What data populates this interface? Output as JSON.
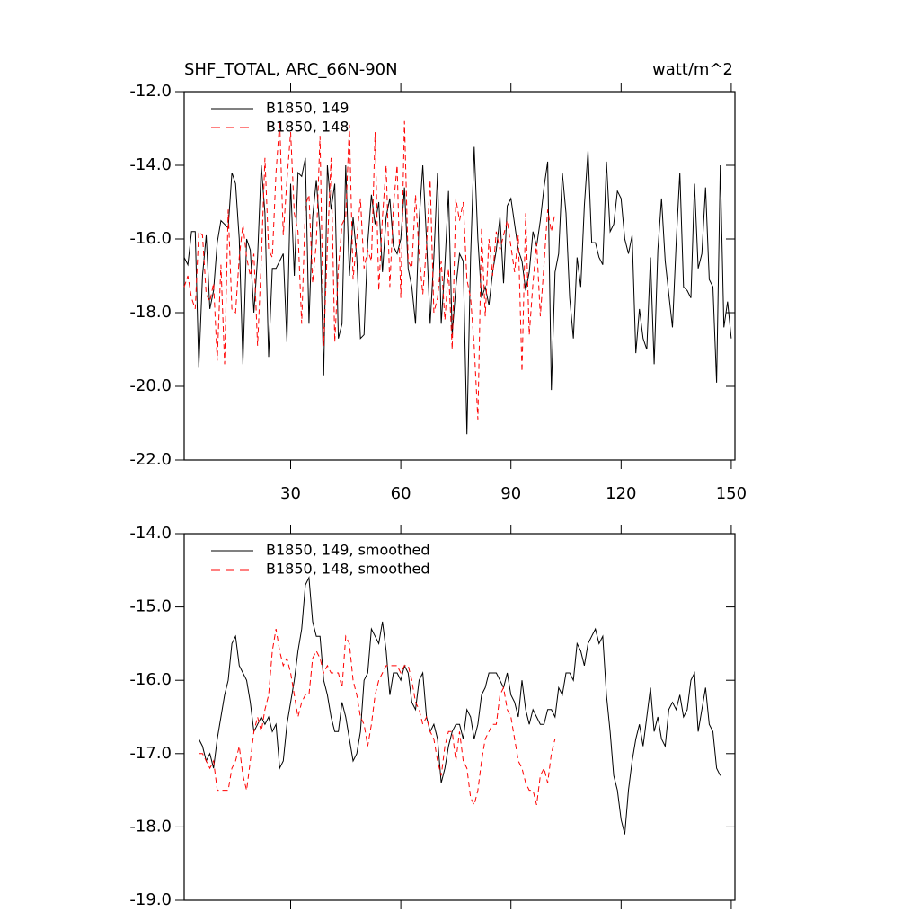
{
  "chart_data": [
    {
      "type": "line",
      "title": "SHF_TOTAL, ARC_66N-90N",
      "right_title": "watt/m^2",
      "xlim": [
        1,
        151
      ],
      "xticks": [
        30,
        60,
        90,
        120,
        150
      ],
      "xtick_labels": true,
      "ylim": [
        -22,
        -12
      ],
      "yticks": [
        {
          "value": -22,
          "label": "-22.0"
        },
        {
          "value": -20,
          "label": "-20.0"
        },
        {
          "value": -18,
          "label": "-18.0"
        },
        {
          "value": -16,
          "label": "-16.0"
        },
        {
          "value": -14,
          "label": "-14.0"
        },
        {
          "value": -12,
          "label": "-12.0"
        }
      ],
      "series": [
        {
          "name": "B1850, 149",
          "color": "#000000",
          "dashed": false,
          "x": [
            1,
            2,
            3,
            4,
            5,
            6,
            7,
            8,
            9,
            10,
            11,
            12,
            13,
            14,
            15,
            16,
            17,
            18,
            19,
            20,
            21,
            22,
            23,
            24,
            25,
            26,
            27,
            28,
            29,
            30,
            31,
            32,
            33,
            34,
            35,
            36,
            37,
            38,
            39,
            40,
            41,
            42,
            43,
            44,
            45,
            46,
            47,
            48,
            49,
            50,
            51,
            52,
            53,
            54,
            55,
            56,
            57,
            58,
            59,
            60,
            61,
            62,
            63,
            64,
            65,
            66,
            67,
            68,
            69,
            70,
            71,
            72,
            73,
            74,
            75,
            76,
            77,
            78,
            79,
            80,
            81,
            82,
            83,
            84,
            85,
            86,
            87,
            88,
            89,
            90,
            91,
            92,
            93,
            94,
            95,
            96,
            97,
            98,
            99,
            100,
            101,
            102,
            103,
            104,
            105,
            106,
            107,
            108,
            109,
            110,
            111,
            112,
            113,
            114,
            115,
            116,
            117,
            118,
            119,
            120,
            121,
            122,
            123,
            124,
            125,
            126,
            127,
            128,
            129,
            130,
            131,
            132,
            133,
            134,
            135,
            136,
            137,
            138,
            139,
            140,
            141,
            142,
            143,
            144,
            145,
            146,
            147,
            148,
            149,
            150
          ],
          "values": [
            -16.5,
            -16.7,
            -15.8,
            -15.8,
            -19.5,
            -17.0,
            -15.9,
            -17.9,
            -17.4,
            -16.1,
            -15.5,
            -15.6,
            -15.7,
            -14.2,
            -14.5,
            -16.0,
            -19.4,
            -16.0,
            -16.3,
            -18.0,
            -16.5,
            -14.0,
            -15.3,
            -19.2,
            -16.8,
            -16.8,
            -16.6,
            -16.4,
            -18.8,
            -14.5,
            -17.0,
            -14.2,
            -14.3,
            -13.8,
            -18.3,
            -15.4,
            -14.4,
            -15.8,
            -19.7,
            -14.0,
            -15.2,
            -14.5,
            -18.7,
            -18.3,
            -14.0,
            -17.0,
            -15.4,
            -16.5,
            -18.7,
            -18.6,
            -16.1,
            -14.8,
            -15.6,
            -15.0,
            -16.9,
            -15.4,
            -14.9,
            -16.2,
            -16.4,
            -16.0,
            -14.6,
            -16.8,
            -17.3,
            -18.3,
            -15.5,
            -14.0,
            -16.0,
            -18.3,
            -16.5,
            -14.2,
            -18.3,
            -16.7,
            -14.7,
            -18.6,
            -17.3,
            -16.4,
            -16.6,
            -21.3,
            -16.5,
            -13.5,
            -16.0,
            -17.6,
            -17.3,
            -17.8,
            -16.9,
            -16.3,
            -15.4,
            -17.2,
            -15.1,
            -14.9,
            -15.6,
            -16.3,
            -16.6,
            -17.4,
            -16.9,
            -15.8,
            -16.2,
            -15.5,
            -14.6,
            -13.9,
            -20.1,
            -16.9,
            -16.4,
            -14.2,
            -15.3,
            -17.6,
            -18.7,
            -16.5,
            -17.3,
            -15.1,
            -13.6,
            -16.1,
            -16.1,
            -16.5,
            -16.7,
            -13.9,
            -15.8,
            -15.6,
            -14.7,
            -14.9,
            -16.0,
            -16.4,
            -15.9,
            -19.1,
            -17.9,
            -18.7,
            -19.0,
            -16.5,
            -19.4,
            -16.3,
            -14.9,
            -16.6,
            -17.5,
            -18.4,
            -16.1,
            -14.2,
            -17.3,
            -17.4,
            -17.6,
            -14.5,
            -16.8,
            -16.4,
            -14.6,
            -17.1,
            -17.3,
            -19.9,
            -14.0,
            -18.4,
            -17.7,
            -18.7
          ]
        },
        {
          "name": "B1850, 148",
          "color": "#ff0000",
          "dashed": true,
          "x": [
            1,
            2,
            3,
            4,
            5,
            6,
            7,
            8,
            9,
            10,
            11,
            12,
            13,
            14,
            15,
            16,
            17,
            18,
            19,
            20,
            21,
            22,
            23,
            24,
            25,
            26,
            27,
            28,
            29,
            30,
            31,
            32,
            33,
            34,
            35,
            36,
            37,
            38,
            39,
            40,
            41,
            42,
            43,
            44,
            45,
            46,
            47,
            48,
            49,
            50,
            51,
            52,
            53,
            54,
            55,
            56,
            57,
            58,
            59,
            60,
            61,
            62,
            63,
            64,
            65,
            66,
            67,
            68,
            69,
            70,
            71,
            72,
            73,
            74,
            75,
            76,
            77,
            78,
            79,
            80,
            81,
            82,
            83,
            84,
            85,
            86,
            87,
            88,
            89,
            90,
            91,
            92,
            93,
            94,
            95,
            96,
            97,
            98,
            99,
            100,
            101,
            102
          ],
          "values": [
            -17.3,
            -17.0,
            -17.6,
            -17.9,
            -15.8,
            -15.9,
            -17.5,
            -17.7,
            -17.2,
            -19.3,
            -16.7,
            -19.4,
            -15.2,
            -17.9,
            -18.0,
            -16.5,
            -15.6,
            -16.5,
            -17.0,
            -16.4,
            -18.9,
            -16.6,
            -13.8,
            -16.3,
            -16.5,
            -14.2,
            -12.8,
            -15.9,
            -14.4,
            -13.1,
            -15.3,
            -15.8,
            -18.3,
            -15.1,
            -14.8,
            -17.2,
            -16.1,
            -13.2,
            -18.9,
            -16.2,
            -13.8,
            -18.8,
            -16.8,
            -15.6,
            -15.4,
            -12.9,
            -17.1,
            -16.0,
            -14.9,
            -16.8,
            -16.3,
            -16.6,
            -13.1,
            -17.4,
            -15.4,
            -14.0,
            -17.3,
            -15.1,
            -14.0,
            -17.6,
            -12.8,
            -16.6,
            -16.8,
            -14.8,
            -16.4,
            -17.5,
            -16.2,
            -14.4,
            -18.0,
            -17.6,
            -16.6,
            -18.2,
            -16.8,
            -19.0,
            -14.9,
            -15.5,
            -15.0,
            -17.1,
            -17.6,
            -18.9,
            -20.9,
            -15.7,
            -18.1,
            -16.0,
            -17.0,
            -15.8,
            -16.3,
            -15.9,
            -15.5,
            -16.2,
            -16.9,
            -15.9,
            -19.6,
            -15.3,
            -18.6,
            -17.2,
            -16.1,
            -18.1,
            -16.7,
            -15.2,
            -15.8,
            -15.3
          ]
        }
      ]
    },
    {
      "type": "line",
      "xlim": [
        1,
        151
      ],
      "xticks": [
        30,
        60,
        90,
        120,
        150
      ],
      "xtick_labels": false,
      "ylim": [
        -19,
        -14
      ],
      "yticks": [
        {
          "value": -19,
          "label": "-19.0"
        },
        {
          "value": -18,
          "label": "-18.0"
        },
        {
          "value": -17,
          "label": "-17.0"
        },
        {
          "value": -16,
          "label": "-16.0"
        },
        {
          "value": -15,
          "label": "-15.0"
        },
        {
          "value": -14,
          "label": "-14.0"
        }
      ],
      "series": [
        {
          "name": "B1850, 149, smoothed",
          "color": "#000000",
          "dashed": false,
          "x": [
            5,
            6,
            7,
            8,
            9,
            10,
            11,
            12,
            13,
            14,
            15,
            16,
            17,
            18,
            19,
            20,
            21,
            22,
            23,
            24,
            25,
            26,
            27,
            28,
            29,
            30,
            31,
            32,
            33,
            34,
            35,
            36,
            37,
            38,
            39,
            40,
            41,
            42,
            43,
            44,
            45,
            46,
            47,
            48,
            49,
            50,
            51,
            52,
            53,
            54,
            55,
            56,
            57,
            58,
            59,
            60,
            61,
            62,
            63,
            64,
            65,
            66,
            67,
            68,
            69,
            70,
            71,
            72,
            73,
            74,
            75,
            76,
            77,
            78,
            79,
            80,
            81,
            82,
            83,
            84,
            85,
            86,
            87,
            88,
            89,
            90,
            91,
            92,
            93,
            94,
            95,
            96,
            97,
            98,
            99,
            100,
            101,
            102,
            103,
            104,
            105,
            106,
            107,
            108,
            109,
            110,
            111,
            112,
            113,
            114,
            115,
            116,
            117,
            118,
            119,
            120,
            121,
            122,
            123,
            124,
            125,
            126,
            127,
            128,
            129,
            130,
            131,
            132,
            133,
            134,
            135,
            136,
            137,
            138,
            139,
            140,
            141,
            142,
            143,
            144,
            145,
            146,
            147
          ],
          "values": [
            -16.8,
            -16.9,
            -17.1,
            -17.0,
            -17.2,
            -16.8,
            -16.5,
            -16.2,
            -16.0,
            -15.5,
            -15.4,
            -15.8,
            -15.9,
            -16.0,
            -16.3,
            -16.7,
            -16.6,
            -16.5,
            -16.6,
            -16.5,
            -16.7,
            -16.6,
            -17.2,
            -17.1,
            -16.6,
            -16.3,
            -16.0,
            -15.6,
            -15.3,
            -14.7,
            -14.6,
            -15.2,
            -15.4,
            -15.4,
            -16.0,
            -16.2,
            -16.5,
            -16.7,
            -16.7,
            -16.3,
            -16.5,
            -16.8,
            -17.1,
            -17.0,
            -16.7,
            -16.0,
            -15.9,
            -15.3,
            -15.4,
            -15.5,
            -15.2,
            -15.6,
            -16.2,
            -15.9,
            -15.9,
            -16.0,
            -15.8,
            -15.9,
            -16.3,
            -16.4,
            -16.0,
            -15.9,
            -16.5,
            -16.7,
            -16.6,
            -16.8,
            -17.4,
            -17.2,
            -16.9,
            -16.7,
            -16.6,
            -16.6,
            -16.8,
            -16.4,
            -16.5,
            -16.8,
            -16.6,
            -16.2,
            -16.1,
            -15.9,
            -15.9,
            -15.9,
            -16.0,
            -16.1,
            -15.9,
            -16.2,
            -16.3,
            -16.5,
            -16.0,
            -16.4,
            -16.6,
            -16.4,
            -16.5,
            -16.6,
            -16.6,
            -16.4,
            -16.4,
            -16.5,
            -16.1,
            -16.2,
            -15.9,
            -15.9,
            -16.0,
            -15.5,
            -15.6,
            -15.8,
            -15.5,
            -15.4,
            -15.3,
            -15.5,
            -15.4,
            -16.2,
            -16.7,
            -17.3,
            -17.5,
            -17.9,
            -18.1,
            -17.5,
            -17.1,
            -16.8,
            -16.6,
            -16.9,
            -16.5,
            -16.1,
            -16.7,
            -16.5,
            -16.8,
            -16.9,
            -16.4,
            -16.3,
            -16.4,
            -16.2,
            -16.5,
            -16.4,
            -16.0,
            -15.9,
            -16.7,
            -16.4,
            -16.1,
            -16.6,
            -16.7,
            -17.2,
            -17.3
          ]
        },
        {
          "name": "B1850, 148, smoothed",
          "color": "#ff0000",
          "dashed": true,
          "x": [
            5,
            6,
            7,
            8,
            9,
            10,
            11,
            12,
            13,
            14,
            15,
            16,
            17,
            18,
            19,
            20,
            21,
            22,
            23,
            24,
            25,
            26,
            27,
            28,
            29,
            30,
            31,
            32,
            33,
            34,
            35,
            36,
            37,
            38,
            39,
            40,
            41,
            42,
            43,
            44,
            45,
            46,
            47,
            48,
            49,
            50,
            51,
            52,
            53,
            54,
            55,
            56,
            57,
            58,
            59,
            60,
            61,
            62,
            63,
            64,
            65,
            66,
            67,
            68,
            69,
            70,
            71,
            72,
            73,
            74,
            75,
            76,
            77,
            78,
            79,
            80,
            81,
            82,
            83,
            84,
            85,
            86,
            87,
            88,
            89,
            90,
            91,
            92,
            93,
            94,
            95,
            96,
            97,
            98,
            99,
            100,
            101,
            102
          ],
          "values": [
            -17.0,
            -17.0,
            -17.1,
            -17.2,
            -17.1,
            -17.5,
            -17.5,
            -17.5,
            -17.5,
            -17.2,
            -17.1,
            -16.9,
            -17.3,
            -17.5,
            -17.1,
            -16.7,
            -16.5,
            -16.7,
            -16.4,
            -16.2,
            -15.6,
            -15.3,
            -15.6,
            -15.8,
            -15.7,
            -15.9,
            -16.2,
            -16.5,
            -16.3,
            -16.2,
            -16.2,
            -15.7,
            -15.6,
            -15.7,
            -15.9,
            -15.8,
            -15.9,
            -15.9,
            -15.9,
            -16.1,
            -15.4,
            -15.5,
            -16.0,
            -16.2,
            -16.5,
            -16.6,
            -16.9,
            -16.6,
            -16.2,
            -16.0,
            -15.9,
            -15.8,
            -15.8,
            -15.8,
            -15.8,
            -15.9,
            -15.8,
            -15.8,
            -16.0,
            -16.3,
            -16.4,
            -16.6,
            -16.5,
            -16.7,
            -16.8,
            -17.1,
            -17.3,
            -16.9,
            -16.7,
            -16.7,
            -17.1,
            -16.7,
            -17.1,
            -17.2,
            -17.6,
            -17.7,
            -17.5,
            -17.1,
            -16.8,
            -16.7,
            -16.6,
            -16.6,
            -16.2,
            -16.1,
            -16.4,
            -16.5,
            -16.8,
            -17.1,
            -17.2,
            -17.4,
            -17.5,
            -17.5,
            -17.7,
            -17.3,
            -17.2,
            -17.4,
            -17.0,
            -16.8
          ]
        }
      ]
    }
  ]
}
